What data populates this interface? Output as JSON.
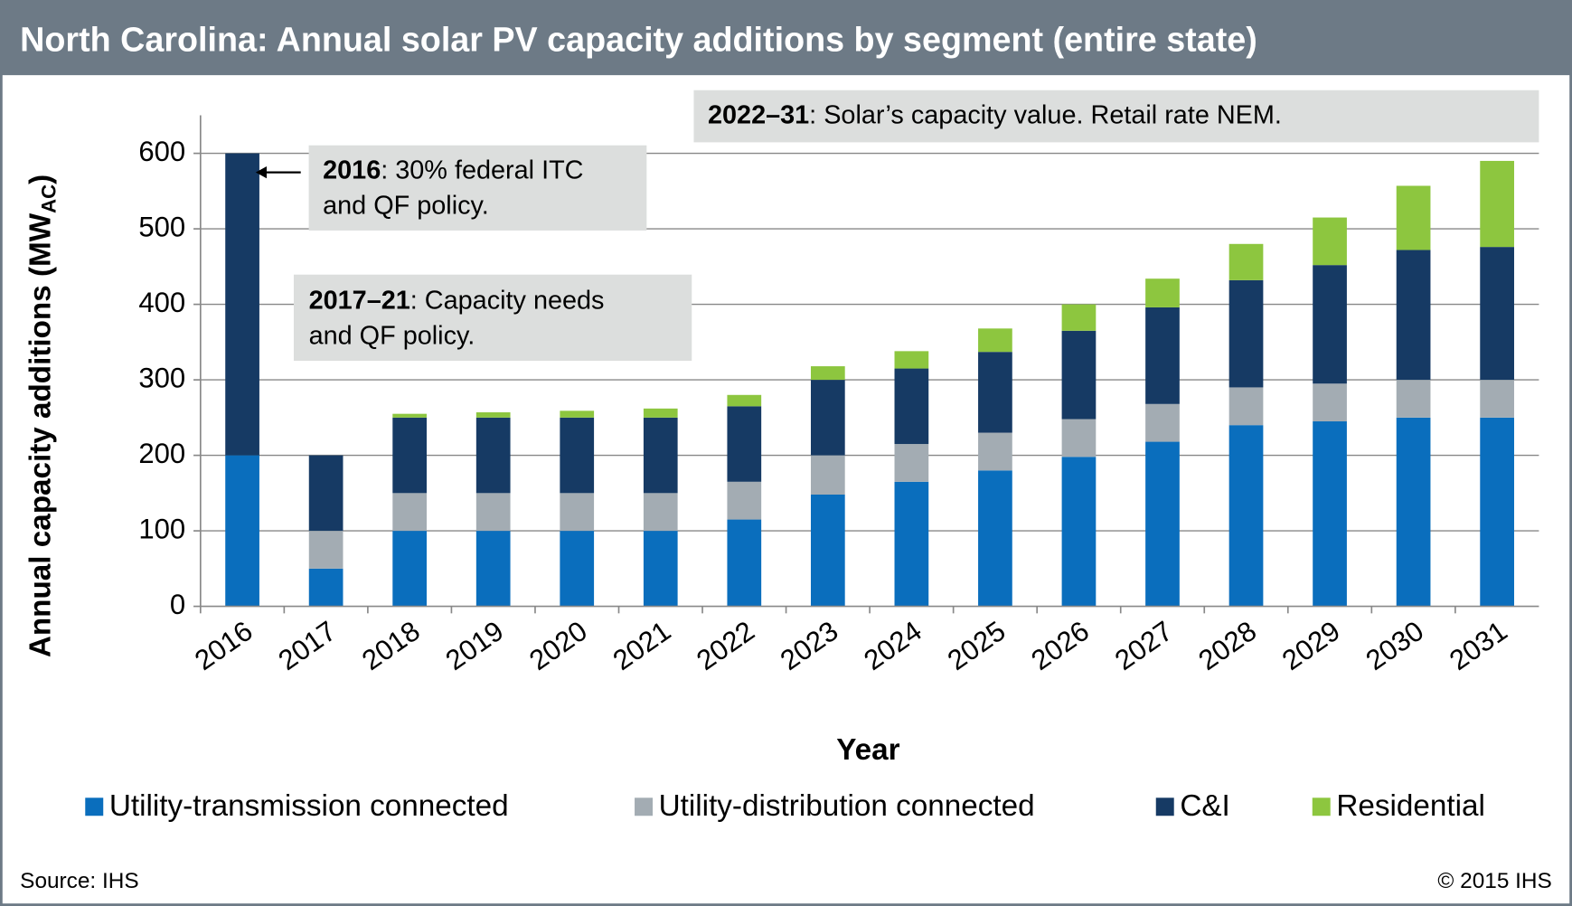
{
  "chart_data": {
    "type": "stacked_bar",
    "title": "North Carolina: Annual solar PV capacity additions by segment (entire state)",
    "y_label": "Annual capacity additions (MW",
    "y_label_sub": "AC",
    "y_label_end": ")",
    "x_label": "Year",
    "categories": [
      "2016",
      "2017",
      "2018",
      "2019",
      "2020",
      "2021",
      "2022",
      "2023",
      "2024",
      "2025",
      "2026",
      "2027",
      "2028",
      "2029",
      "2030",
      "2031"
    ],
    "series": [
      {
        "name": "Utility-transmission connected",
        "color": "#0a6ebd",
        "values": [
          200,
          50,
          100,
          100,
          100,
          100,
          115,
          148,
          165,
          180,
          198,
          218,
          240,
          245,
          250,
          250
        ]
      },
      {
        "name": "Utility-distribution connected",
        "color": "#a3acb3",
        "values": [
          0,
          50,
          50,
          50,
          50,
          50,
          50,
          52,
          50,
          50,
          50,
          50,
          50,
          50,
          50,
          50
        ]
      },
      {
        "name": "C&I",
        "color": "#163a64",
        "values": [
          400,
          100,
          100,
          100,
          100,
          100,
          100,
          100,
          100,
          107,
          117,
          128,
          142,
          157,
          172,
          176
        ]
      },
      {
        "name": "Residential",
        "color": "#8dc63f",
        "values": [
          0,
          0,
          5,
          7,
          9,
          12,
          15,
          18,
          23,
          31,
          35,
          38,
          48,
          63,
          85,
          114
        ]
      }
    ],
    "ylim": [
      0,
      600
    ],
    "yticks": [
      0,
      100,
      200,
      300,
      400,
      500,
      600
    ],
    "grid": true,
    "annotations": [
      {
        "bold": "2016",
        "lines": [
          ": 30% federal ITC",
          "and QF policy."
        ]
      },
      {
        "bold": "2017–21",
        "lines": [
          ": Capacity needs",
          "and QF policy."
        ]
      },
      {
        "bold": "2022–31",
        "lines": [
          ": Solar’s capacity value. Retail rate NEM."
        ]
      }
    ],
    "source": "Source: IHS",
    "copyright": "© 2015 IHS"
  }
}
